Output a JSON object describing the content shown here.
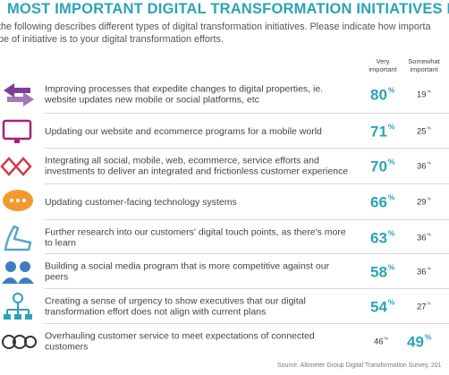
{
  "header": {
    "title": "MOST IMPORTANT DIGITAL TRANSFORMATION INITIATIVES RANK",
    "subtitle": [
      "the following describes different types of digital transformation initiatives. Please indicate how importa",
      "pe of initiative is to your digital transformation efforts."
    ]
  },
  "table": {
    "columns": [
      "Very important",
      "Somewhat important"
    ],
    "percent_sign": "%",
    "rows": [
      {
        "text": "Improving processes that expedite changes to digital properties, ie. website updates new mobile or social platforms, etc",
        "very": 80,
        "somewhat": 19,
        "highlight": "very"
      },
      {
        "text": "Updating our website and ecommerce programs for a mobile world",
        "very": 71,
        "somewhat": 25,
        "highlight": "very"
      },
      {
        "text": "Integrating all social, mobile, web, ecommerce, service efforts and investments to deliver an integrated and frictionless customer experience",
        "very": 70,
        "somewhat": 36,
        "highlight": "very"
      },
      {
        "text": "Updating customer-facing technology systems",
        "very": 66,
        "somewhat": 29,
        "highlight": "very"
      },
      {
        "text": "Further research into our customers' digital touch points, as there's more to learn",
        "very": 63,
        "somewhat": 36,
        "highlight": "very"
      },
      {
        "text": "Building a social media program that is more competitive against our peers",
        "very": 58,
        "somewhat": 36,
        "highlight": "very"
      },
      {
        "text": "Creating a sense of urgency to show executives that our digital transformation effort does not align with current plans",
        "very": 54,
        "somewhat": 27,
        "highlight": "very"
      },
      {
        "text": "Overhauling customer service to meet expectations of connected customers",
        "very": 46,
        "somewhat": 49,
        "highlight": "somewhat"
      }
    ]
  },
  "source": "Source: Altimeter Group Digital Transformation Survey, 201"
}
